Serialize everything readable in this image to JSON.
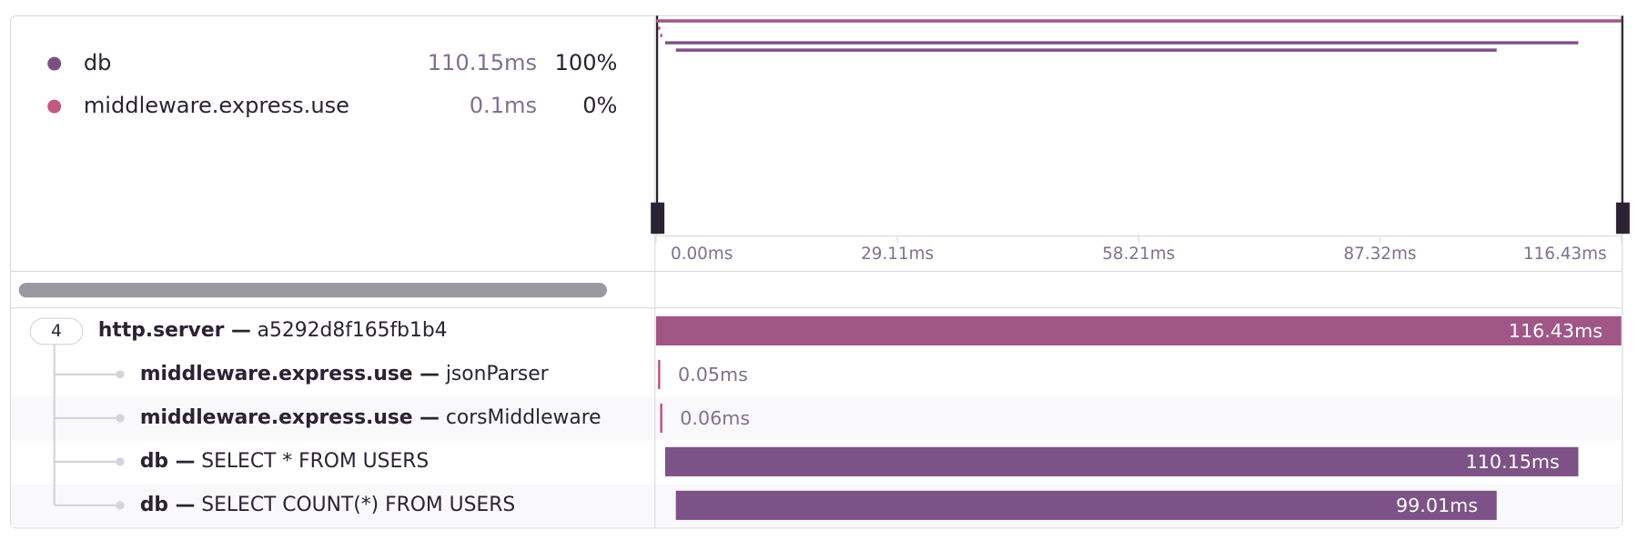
{
  "legend": [
    {
      "name": "db",
      "duration": "110.15ms",
      "percent": "100%",
      "color": "#7b5185"
    },
    {
      "name": "middleware.express.use",
      "duration": "0.1ms",
      "percent": "0%",
      "color": "#c4577e"
    }
  ],
  "timeline": {
    "xlim": [
      0,
      116.43
    ],
    "ticks": [
      {
        "value": 0,
        "label": "0.00ms"
      },
      {
        "value": 29.11,
        "label": "29.11ms"
      },
      {
        "value": 58.21,
        "label": "58.21ms"
      },
      {
        "value": 87.32,
        "label": "87.32ms"
      },
      {
        "value": 116.43,
        "label": "116.43ms"
      }
    ]
  },
  "spans": [
    {
      "count": "4",
      "op": "http.server —",
      "description": "a5292d8f165fb1b4",
      "start": 0,
      "duration": 116.43,
      "duration_label": "116.43ms",
      "color": "#a05788",
      "depth": 0
    },
    {
      "op": "middleware.express.use —",
      "description": "jsonParser",
      "start": 0.25,
      "duration": 0.05,
      "duration_label": "0.05ms",
      "color": "#c4456f",
      "depth": 1
    },
    {
      "op": "middleware.express.use —",
      "description": "corsMiddleware",
      "start": 0.5,
      "duration": 0.06,
      "duration_label": "0.06ms",
      "color": "#c4456f",
      "depth": 1
    },
    {
      "op": "db —",
      "description": "SELECT * FROM USERS",
      "start": 1.1,
      "duration": 110.15,
      "duration_label": "110.15ms",
      "color": "#7d5286",
      "depth": 1
    },
    {
      "op": "db —",
      "description": "SELECT COUNT(*) FROM USERS",
      "start": 2.39,
      "duration": 99.01,
      "duration_label": "99.01ms",
      "color": "#7d5286",
      "depth": 1
    }
  ]
}
